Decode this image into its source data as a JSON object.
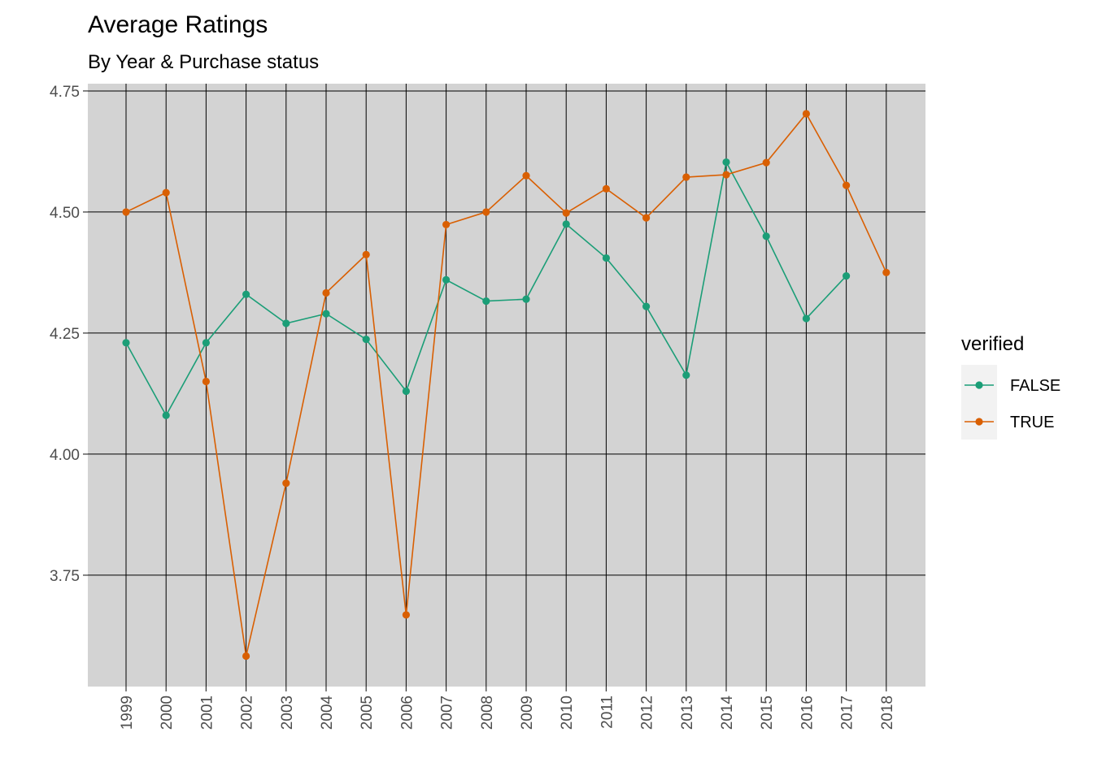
{
  "chart_data": {
    "type": "line",
    "title": "Average Ratings",
    "subtitle": "By Year & Purchase status",
    "xlabel": "",
    "ylabel": "",
    "categories": [
      "1999",
      "2000",
      "2001",
      "2002",
      "2003",
      "2004",
      "2005",
      "2006",
      "2007",
      "2008",
      "2009",
      "2010",
      "2011",
      "2012",
      "2013",
      "2014",
      "2015",
      "2016",
      "2017",
      "2018"
    ],
    "ylim": [
      3.52,
      4.765
    ],
    "yticks": [
      3.75,
      4.0,
      4.25,
      4.5,
      4.75
    ],
    "ytick_labels": [
      "3.75",
      "4.00",
      "4.25",
      "4.50",
      "4.75"
    ],
    "grid": true,
    "legend": {
      "title": "verified",
      "placement": "right"
    },
    "series": [
      {
        "name": "FALSE",
        "color": "#1b9e77",
        "values": [
          4.23,
          4.08,
          4.23,
          4.33,
          4.27,
          4.29,
          4.237,
          4.13,
          4.36,
          4.316,
          4.32,
          4.475,
          4.405,
          4.305,
          4.163,
          4.603,
          4.45,
          4.28,
          4.368,
          null
        ]
      },
      {
        "name": "TRUE",
        "color": "#d95f02",
        "values": [
          4.5,
          4.54,
          4.15,
          3.583,
          3.94,
          4.333,
          4.412,
          3.668,
          4.474,
          4.5,
          4.575,
          4.498,
          4.548,
          4.488,
          4.572,
          4.577,
          4.602,
          4.703,
          4.555,
          4.375
        ]
      }
    ]
  }
}
